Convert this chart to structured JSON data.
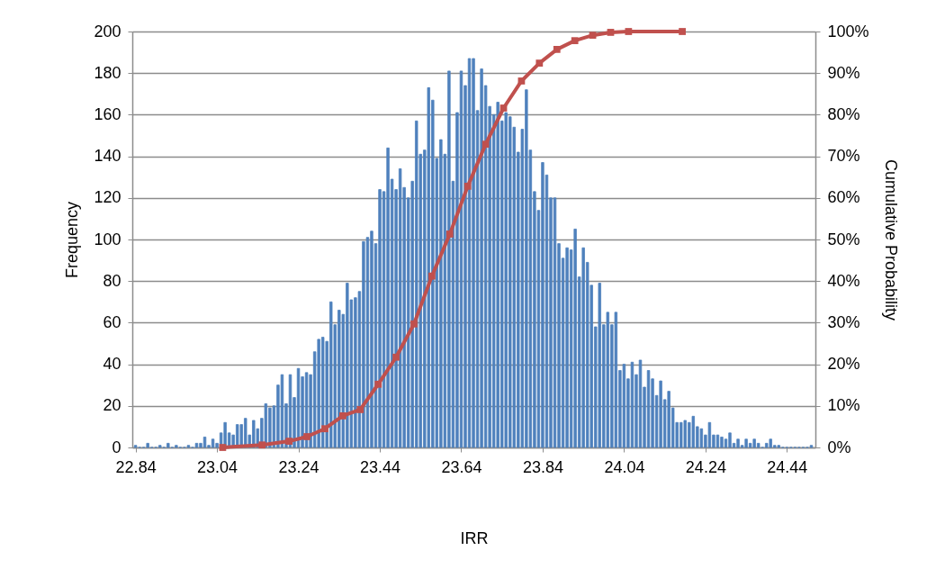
{
  "chart_data": {
    "type": "bar",
    "xlabel": "IRR",
    "ylabel": "Frequency",
    "y2label": "Cumulative Probability",
    "x": [
      22.84,
      22.85,
      22.86,
      22.87,
      22.88,
      22.89,
      22.9,
      22.91,
      22.92,
      22.93,
      22.94,
      22.95,
      22.96,
      22.97,
      22.98,
      22.99,
      23.0,
      23.01,
      23.02,
      23.03,
      23.04,
      23.05,
      23.06,
      23.07,
      23.08,
      23.09,
      23.1,
      23.11,
      23.12,
      23.13,
      23.14,
      23.15,
      23.16,
      23.17,
      23.18,
      23.19,
      23.2,
      23.21,
      23.22,
      23.23,
      23.24,
      23.25,
      23.26,
      23.27,
      23.28,
      23.29,
      23.3,
      23.31,
      23.32,
      23.33,
      23.34,
      23.35,
      23.36,
      23.37,
      23.38,
      23.39,
      23.4,
      23.41,
      23.42,
      23.43,
      23.44,
      23.45,
      23.46,
      23.47,
      23.48,
      23.49,
      23.5,
      23.51,
      23.52,
      23.53,
      23.54,
      23.55,
      23.56,
      23.57,
      23.58,
      23.59,
      23.6,
      23.61,
      23.62,
      23.63,
      23.64,
      23.65,
      23.66,
      23.67,
      23.68,
      23.69,
      23.7,
      23.71,
      23.72,
      23.73,
      23.74,
      23.75,
      23.76,
      23.77,
      23.78,
      23.79,
      23.8,
      23.81,
      23.82,
      23.83,
      23.84,
      23.85,
      23.86,
      23.87,
      23.88,
      23.89,
      23.9,
      23.91,
      23.92,
      23.93,
      23.94,
      23.95,
      23.96,
      23.97,
      23.98,
      23.99,
      24.0,
      24.01,
      24.02,
      24.03,
      24.04,
      24.05,
      24.06,
      24.07,
      24.08,
      24.09,
      24.1,
      24.11,
      24.12,
      24.13,
      24.14,
      24.15,
      24.16,
      24.17,
      24.18,
      24.19,
      24.2,
      24.21,
      24.22,
      24.23,
      24.24,
      24.25,
      24.26,
      24.27,
      24.28,
      24.29,
      24.3,
      24.31,
      24.32,
      24.33,
      24.34,
      24.35,
      24.36,
      24.37,
      24.38,
      24.39,
      24.4,
      24.41,
      24.42,
      24.43,
      24.44,
      24.45,
      24.46,
      24.47,
      24.48,
      24.49,
      24.5
    ],
    "series": [
      {
        "color": "#4f81bd",
        "values": [
          1,
          0,
          0,
          2,
          0,
          0,
          1,
          0,
          2,
          0,
          1,
          0,
          0,
          1,
          0,
          2,
          2,
          5,
          1,
          4,
          2,
          7,
          12,
          7,
          6,
          11,
          11,
          14,
          6,
          13,
          9,
          14,
          21,
          19,
          20,
          30,
          35,
          21,
          35,
          24,
          38,
          34,
          36,
          35,
          46,
          52,
          53,
          51,
          70,
          59,
          66,
          64,
          79,
          71,
          72,
          75,
          99,
          101,
          104,
          98,
          124,
          123,
          144,
          129,
          124,
          134,
          125,
          120,
          128,
          157,
          141,
          143,
          173,
          167,
          139,
          148,
          141,
          181,
          128,
          161,
          181,
          174,
          187,
          187,
          162,
          182,
          174,
          164,
          160,
          166,
          157,
          161,
          159,
          154,
          142,
          153,
          172,
          143,
          123,
          114,
          137,
          131,
          120,
          120,
          98,
          91,
          96,
          95,
          105,
          82,
          96,
          89,
          78,
          58,
          79,
          59,
          65,
          59,
          65,
          37,
          40,
          33,
          41,
          35,
          42,
          29,
          37,
          33,
          25,
          32,
          23,
          27,
          19,
          12,
          12,
          13,
          12,
          15,
          10,
          9,
          6,
          12,
          6,
          6,
          5,
          4,
          7,
          2,
          4,
          1,
          4,
          2,
          4,
          2,
          0,
          2,
          4,
          1,
          1,
          0,
          0,
          0,
          0,
          0,
          0,
          0,
          1
        ]
      },
      {
        "type": "line",
        "axis": "y2",
        "color": "#c0504d",
        "marker": "square",
        "line_style": "solid",
        "x": [
          23.054,
          23.151,
          23.217,
          23.261,
          23.305,
          23.349,
          23.392,
          23.436,
          23.48,
          23.524,
          23.568,
          23.612,
          23.656,
          23.7,
          23.744,
          23.788,
          23.832,
          23.875,
          23.919,
          23.963,
          24.007,
          24.051,
          24.183
        ],
        "values": [
          0,
          0.6,
          1.5,
          2.6,
          4.5,
          7.6,
          9.1,
          15.2,
          21.7,
          29.7,
          41.2,
          51.3,
          62.8,
          72.9,
          81.6,
          88.1,
          92.4,
          95.7,
          97.8,
          99.1,
          99.8,
          100,
          100
        ]
      }
    ],
    "xlim": [
      22.832,
      24.51
    ],
    "xticks": [
      22.84,
      23.04,
      23.24,
      23.44,
      23.64,
      23.84,
      24.04,
      24.24,
      24.44
    ],
    "ylim": [
      0,
      200
    ],
    "yticks": [
      0,
      20,
      40,
      60,
      80,
      100,
      120,
      140,
      160,
      180,
      200
    ],
    "y2lim": [
      0,
      100
    ],
    "y2ticks": [
      {
        "value": 0,
        "label": "0%"
      },
      {
        "value": 10,
        "label": "10%"
      },
      {
        "value": 20,
        "label": "20%"
      },
      {
        "value": 30,
        "label": "30%"
      },
      {
        "value": 40,
        "label": "40%"
      },
      {
        "value": 50,
        "label": "50%"
      },
      {
        "value": 60,
        "label": "60%"
      },
      {
        "value": 70,
        "label": "70%"
      },
      {
        "value": 80,
        "label": "80%"
      },
      {
        "value": 90,
        "label": "90%"
      },
      {
        "value": 100,
        "label": "100%"
      }
    ],
    "grid": "y"
  }
}
